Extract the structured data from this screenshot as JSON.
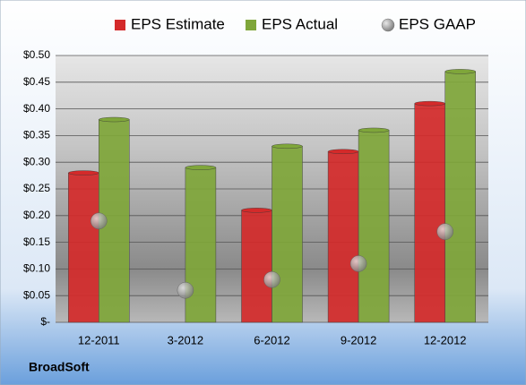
{
  "chart_data": {
    "type": "bar",
    "categories": [
      "12-2011",
      "3-2012",
      "6-2012",
      "9-2012",
      "12-2012"
    ],
    "series": [
      {
        "name": "EPS Estimate",
        "type": "bar",
        "color": "#d42a2a",
        "values": [
          0.28,
          null,
          0.21,
          0.32,
          0.41
        ]
      },
      {
        "name": "EPS Actual",
        "type": "bar",
        "color": "#7fa63a",
        "values": [
          0.38,
          0.29,
          0.33,
          0.36,
          0.47
        ]
      },
      {
        "name": "EPS GAAP",
        "type": "scatter",
        "color": "#9a9a9a",
        "values": [
          0.19,
          0.06,
          0.08,
          0.11,
          0.17
        ]
      }
    ],
    "ylim": [
      0,
      0.5
    ],
    "yticks": [
      {
        "value": 0,
        "label": "$-"
      },
      {
        "value": 0.05,
        "label": "$0.05"
      },
      {
        "value": 0.1,
        "label": "$0.10"
      },
      {
        "value": 0.15,
        "label": "$0.15"
      },
      {
        "value": 0.2,
        "label": "$0.20"
      },
      {
        "value": 0.25,
        "label": "$0.25"
      },
      {
        "value": 0.3,
        "label": "$0.30"
      },
      {
        "value": 0.35,
        "label": "$0.35"
      },
      {
        "value": 0.4,
        "label": "$0.40"
      },
      {
        "value": 0.45,
        "label": "$0.45"
      },
      {
        "value": 0.5,
        "label": "$0.50"
      }
    ],
    "grid": true,
    "legend": "top",
    "footer": "BroadSoft"
  }
}
